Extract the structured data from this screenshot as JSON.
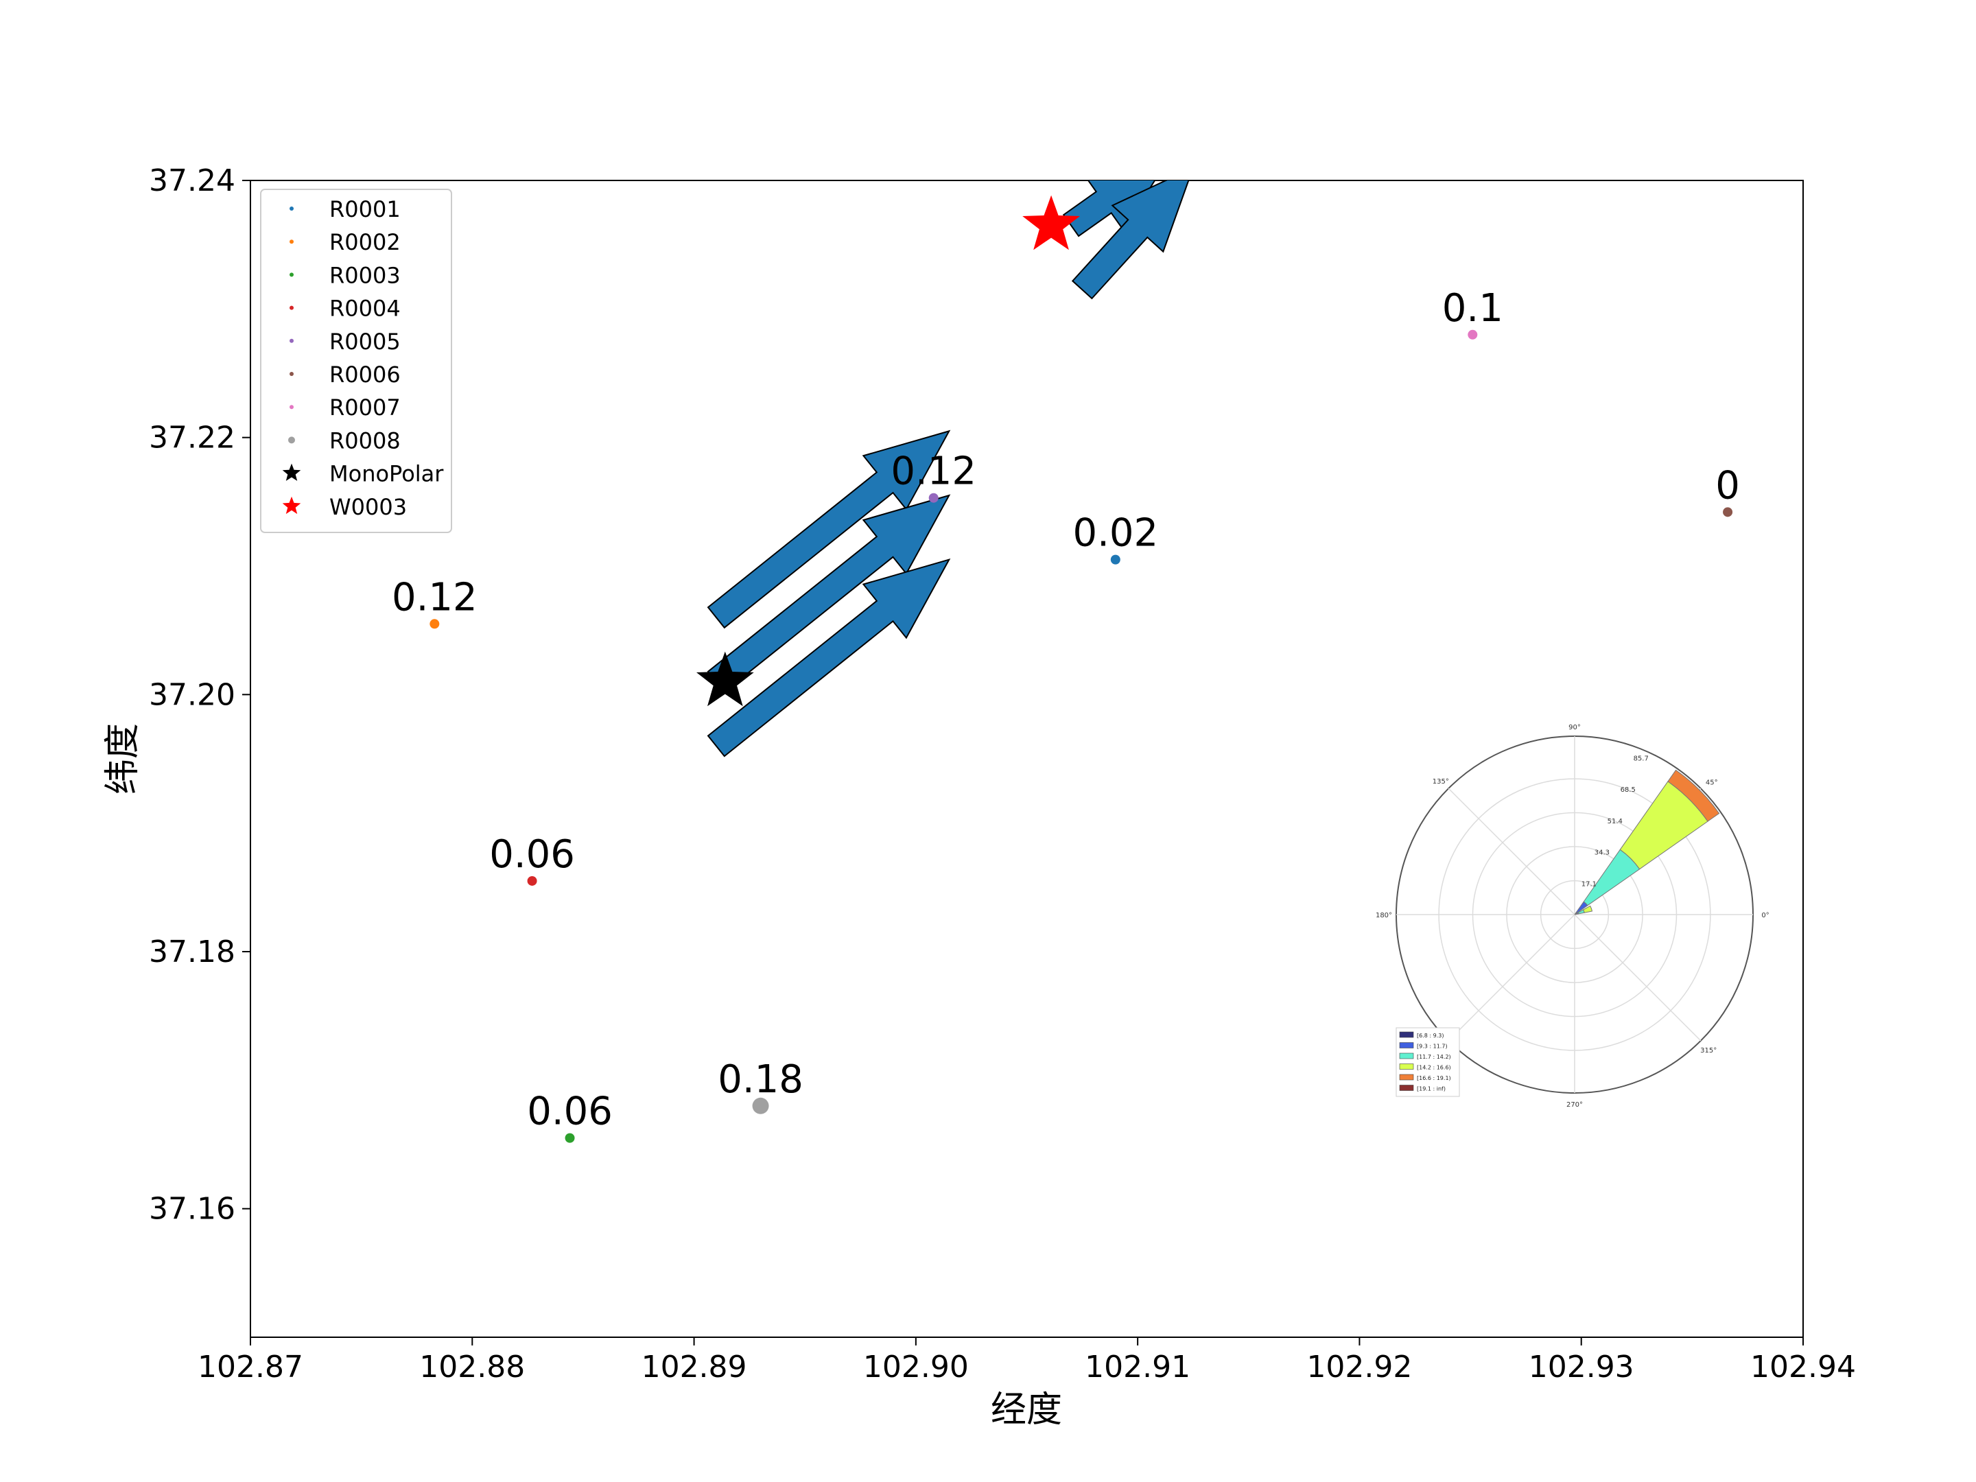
{
  "chart_data": {
    "type": "scatter",
    "xlabel": "经度",
    "ylabel": "纬度",
    "xlim": [
      102.87,
      102.94
    ],
    "ylim": [
      37.15,
      37.24
    ],
    "xticks": [
      "102.87",
      "102.88",
      "102.89",
      "102.90",
      "102.91",
      "102.92",
      "102.93",
      "102.94"
    ],
    "yticks": [
      "37.16",
      "37.18",
      "37.20",
      "37.22",
      "37.24"
    ],
    "grid": false,
    "legend_position": "top-left",
    "series": [
      {
        "name": "R0001",
        "x": 102.909,
        "y": 37.2105,
        "label": "0.02",
        "color": "#1f77b4"
      },
      {
        "name": "R0002",
        "x": 102.8783,
        "y": 37.2055,
        "label": "0.12",
        "color": "#ff7f0e"
      },
      {
        "name": "R0003",
        "x": 102.8844,
        "y": 37.1655,
        "label": "0.06",
        "color": "#2ca02c"
      },
      {
        "name": "R0004",
        "x": 102.8827,
        "y": 37.1855,
        "label": "0.06",
        "color": "#d62728"
      },
      {
        "name": "R0005",
        "x": 102.9008,
        "y": 37.2153,
        "label": "0.12",
        "color": "#9467bd"
      },
      {
        "name": "R0006",
        "x": 102.9366,
        "y": 37.2142,
        "label": "0",
        "color": "#8c564b"
      },
      {
        "name": "R0007",
        "x": 102.9251,
        "y": 37.228,
        "label": "0.1",
        "color": "#e377c2"
      },
      {
        "name": "R0008",
        "x": 102.893,
        "y": 37.168,
        "label": "0.18",
        "color": "#a0a0a0"
      }
    ],
    "markers": [
      {
        "name": "MonoPolar",
        "x": 102.8914,
        "y": 37.201,
        "shape": "star",
        "color": "#000000"
      },
      {
        "name": "W0003",
        "x": 102.9061,
        "y": 37.2365,
        "shape": "star",
        "color": "#ff0000"
      }
    ],
    "arrows": [
      {
        "from": [
          102.891,
          37.206
        ],
        "to": [
          102.9015,
          37.2205
        ],
        "color": "#1f77b4"
      },
      {
        "from": [
          102.891,
          37.201
        ],
        "to": [
          102.9015,
          37.2155
        ],
        "color": "#1f77b4"
      },
      {
        "from": [
          102.891,
          37.196
        ],
        "to": [
          102.9015,
          37.2105
        ],
        "color": "#1f77b4"
      },
      {
        "from": [
          102.907,
          37.2365
        ],
        "to": [
          102.9115,
          37.242
        ],
        "color": "#1f77b4"
      },
      {
        "from": [
          102.9075,
          37.2315
        ],
        "to": [
          102.9125,
          37.241
        ],
        "color": "#1f77b4"
      }
    ],
    "inset_rose": {
      "type": "polar-bar",
      "angle_labels": [
        "0°",
        "45°",
        "90°",
        "135°",
        "180°",
        "270°",
        "315°"
      ],
      "radial_labels": [
        "17.1",
        "34.3",
        "51.4",
        "68.5",
        "85.7"
      ],
      "rmax": 90,
      "direction_deg": 45,
      "sector_width_deg": 20,
      "stacks": [
        {
          "bin": "[6.8 : 9.3)",
          "value": 1.5,
          "color": "#30307a"
        },
        {
          "bin": "[9.3 : 11.7)",
          "value": 6.5,
          "color": "#4060e0"
        },
        {
          "bin": "[11.7 : 14.2)",
          "value": 32,
          "color": "#60f0d0"
        },
        {
          "bin": "[14.2 : 16.6)",
          "value": 42,
          "color": "#d8ff50"
        },
        {
          "bin": "[16.6 : 19.1)",
          "value": 7,
          "color": "#f08038"
        },
        {
          "bin": "[19.1 : inf)",
          "value": 0,
          "color": "#8b3030"
        }
      ],
      "small_sector": {
        "direction_deg": 20,
        "values": [
          2,
          3,
          4
        ],
        "colors": [
          "#4060e0",
          "#60f0d0",
          "#d8ff50"
        ]
      }
    }
  }
}
